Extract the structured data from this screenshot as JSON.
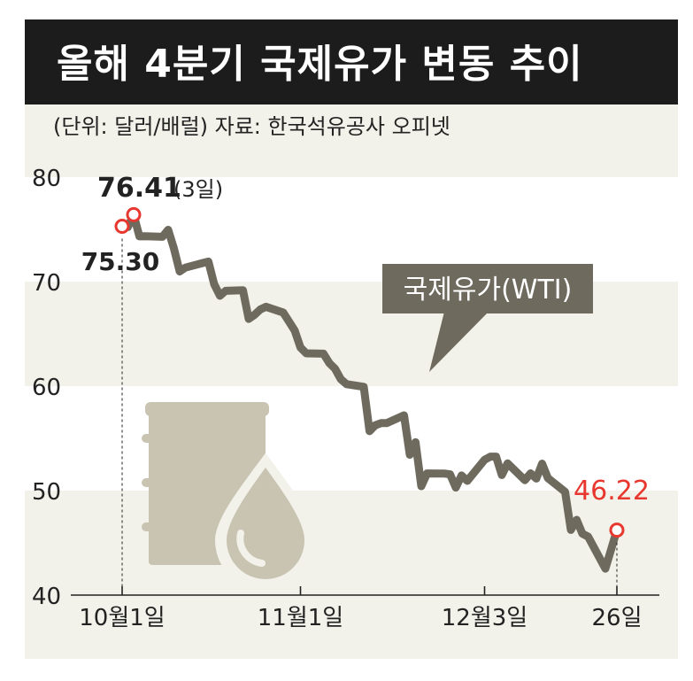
{
  "title": "올해 4분기 국제유가 변동 추이",
  "subtitle": "(단위: 달러/배럴) 자료: 한국석유공사 오피넷",
  "colors": {
    "background": "#f2f2ea",
    "band": "#ffffff",
    "title_bar": "#1c1c1c",
    "line": "#6e6a5e",
    "icon": "#c9c4b2",
    "highlight": "#e8372e",
    "text": "#222222"
  },
  "icon": "oil-barrel-drop-icon",
  "chart_data": {
    "type": "line",
    "title": "올해 4분기 국제유가 변동 추이",
    "unit": "(단위: 달러/배럴)",
    "source": "자료: 한국석유공사 오피넷",
    "ylim": [
      40,
      80
    ],
    "y_ticks": [
      "80",
      "70",
      "60",
      "50",
      "40"
    ],
    "x_ticks": [
      "10월1일",
      "11월1일",
      "12월3일",
      "26일"
    ],
    "series": [
      {
        "name": "국제유가(WTI)",
        "x": [
          "10-01",
          "10-02",
          "10-03",
          "10-04",
          "10-05",
          "10-08",
          "10-09",
          "10-10",
          "10-11",
          "10-12",
          "10-15",
          "10-16",
          "10-17",
          "10-18",
          "10-19",
          "10-22",
          "10-23",
          "10-24",
          "10-25",
          "10-26",
          "10-29",
          "10-30",
          "10-31",
          "11-01",
          "11-02",
          "11-05",
          "11-06",
          "11-07",
          "11-08",
          "11-09",
          "11-12",
          "11-13",
          "11-14",
          "11-15",
          "11-16",
          "11-19",
          "11-20",
          "11-21",
          "11-22",
          "11-23",
          "11-26",
          "11-27",
          "11-28",
          "11-29",
          "11-30",
          "12-03",
          "12-04",
          "12-05",
          "12-06",
          "12-07",
          "12-10",
          "12-11",
          "12-12",
          "12-13",
          "12-14",
          "12-17",
          "12-18",
          "12-19",
          "12-20",
          "12-21",
          "12-24",
          "12-26"
        ],
        "values": [
          75.3,
          75.23,
          76.41,
          74.33,
          74.34,
          74.29,
          74.96,
          73.17,
          70.97,
          71.34,
          71.78,
          71.92,
          69.75,
          68.65,
          69.12,
          69.17,
          66.43,
          66.82,
          67.33,
          67.59,
          67.04,
          66.18,
          65.31,
          63.69,
          63.14,
          63.1,
          62.21,
          61.67,
          60.67,
          60.19,
          59.93,
          55.69,
          56.25,
          56.46,
          56.46,
          57.2,
          53.43,
          54.63,
          50.42,
          51.64,
          51.63,
          51.56,
          50.29,
          51.45,
          50.93,
          52.95,
          53.25,
          53.25,
          51.49,
          52.61,
          51.0,
          51.65,
          51.15,
          52.58,
          51.2,
          49.88,
          46.24,
          47.2,
          45.88,
          45.59,
          42.53,
          46.22
        ]
      }
    ],
    "annotations": [
      {
        "label": "75.30",
        "x": "10-01",
        "value": 75.3
      },
      {
        "label": "76.41",
        "suffix": "(3일)",
        "x": "10-03",
        "value": 76.41
      },
      {
        "label": "46.22",
        "x": "12-26",
        "value": 46.22
      }
    ],
    "series_label": "국제유가(WTI)",
    "grid_bands": true,
    "legend": "none"
  }
}
